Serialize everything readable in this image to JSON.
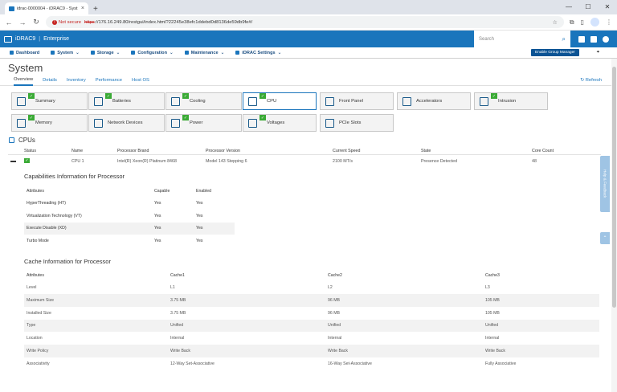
{
  "browser": {
    "tab_title": "idrac-0000004 - iDRAC9 - Syst",
    "new_tab": "+",
    "not_secure": "Not secure",
    "https": "https",
    "url_rest": "://176.16.249.80/restgui/index.html?22245e38efc1ddebd0d8136de59db9fe#/"
  },
  "header": {
    "product": "iDRAC9",
    "edition": "Enterprise",
    "search_placeholder": "Search"
  },
  "menu": {
    "items": [
      "Dashboard",
      "System",
      "Storage",
      "Configuration",
      "Maintenance",
      "iDRAC Settings"
    ],
    "enable_group_manager": "Enable Group Manager"
  },
  "page": {
    "title": "System",
    "tabs": [
      "Overview",
      "Details",
      "Inventory",
      "Performance",
      "Host OS"
    ],
    "refresh": "Refresh"
  },
  "tiles": [
    "Summary",
    "Batteries",
    "Cooling",
    "CPU",
    "Front Panel",
    "Accelerators",
    "Intrusion",
    "Memory",
    "Network Devices",
    "Power",
    "Voltages",
    "PCIe Slots"
  ],
  "cpus": {
    "title": "CPUs",
    "columns": [
      "Status",
      "Name",
      "Processor Brand",
      "Processor Version",
      "Current Speed",
      "State",
      "Core Count"
    ],
    "row": {
      "name": "CPU 1",
      "brand": "Intel(R) Xeon(R) Platinum 8468",
      "version": "Model 143 Stepping 6",
      "speed": "2100 MT/s",
      "state": "Presence Detected",
      "cores": "48"
    }
  },
  "capabilities": {
    "title": "Capabilities Information for Processor",
    "columns": [
      "Attributes",
      "Capable",
      "Enabled"
    ],
    "rows": [
      [
        "HyperThreading (HT)",
        "Yes",
        "Yes"
      ],
      [
        "Virtualization Technology (VT)",
        "Yes",
        "Yes"
      ],
      [
        "Execute Disable (XD)",
        "Yes",
        "Yes"
      ],
      [
        "Turbo Mode",
        "Yes",
        "Yes"
      ]
    ]
  },
  "cache": {
    "title": "Cache Information for Processor",
    "columns": [
      "Attributes",
      "Cache1",
      "Cache2",
      "Cache3"
    ],
    "rows": [
      [
        "Level",
        "L1",
        "L2",
        "L3"
      ],
      [
        "Maximum Size",
        "3.75 MB",
        "96 MB",
        "105 MB"
      ],
      [
        "Installed Size",
        "3.75 MB",
        "96 MB",
        "105 MB"
      ],
      [
        "Type",
        "Unified",
        "Unified",
        "Unified"
      ],
      [
        "Location",
        "Internal",
        "Internal",
        "Internal"
      ],
      [
        "Write Policy",
        "Write Back",
        "Write Back",
        "Write Back"
      ],
      [
        "Associativity",
        "12-Way Set-Associative",
        "16-Way Set-Associative",
        "Fully Associative"
      ]
    ]
  },
  "side": {
    "feedback": "Help & Feedback"
  }
}
